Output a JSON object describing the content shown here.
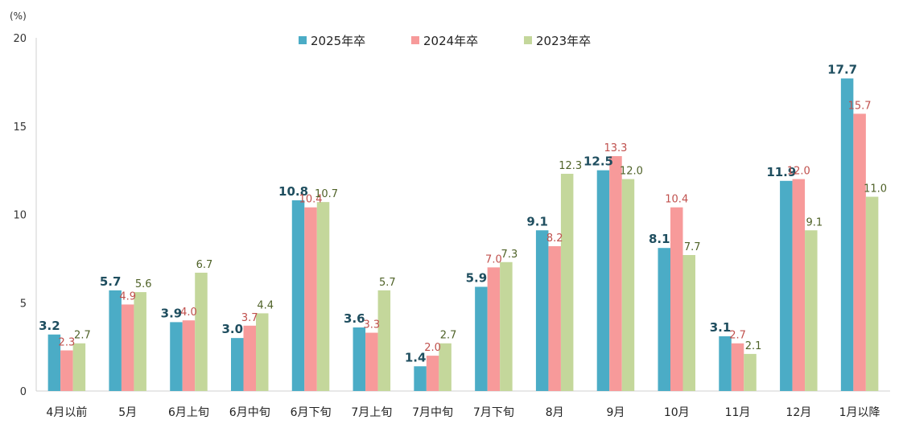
{
  "chart_data": {
    "type": "bar",
    "unit_label": "(%)",
    "categories": [
      "4月以前",
      "5月",
      "6月上旬",
      "6月中旬",
      "6月下旬",
      "7月上旬",
      "7月中旬",
      "7月下旬",
      "8月",
      "9月",
      "10月",
      "11月",
      "12月",
      "1月以降"
    ],
    "series": [
      {
        "name": "2025年卒",
        "color": "#4BACC6",
        "label_color": "#1F4E5F",
        "values": [
          3.2,
          5.7,
          3.9,
          3.0,
          10.8,
          3.6,
          1.4,
          5.9,
          9.1,
          12.5,
          8.1,
          3.1,
          11.9,
          17.7
        ]
      },
      {
        "name": "2024年卒",
        "color": "#F79A9A",
        "label_color": "#C0504D",
        "values": [
          2.3,
          4.9,
          4.0,
          3.7,
          10.4,
          3.3,
          2.0,
          7.0,
          8.2,
          13.3,
          10.4,
          2.7,
          12.0,
          15.7
        ]
      },
      {
        "name": "2023年卒",
        "color": "#C4D79B",
        "label_color": "#4F6228",
        "values": [
          2.7,
          5.6,
          6.7,
          4.4,
          10.7,
          5.7,
          2.7,
          7.3,
          12.3,
          12.0,
          7.7,
          2.1,
          9.1,
          11.0
        ]
      }
    ],
    "ylim": [
      0,
      20
    ],
    "yticks": [
      0,
      5,
      10,
      15,
      20
    ],
    "legend_position": "top-center",
    "grid": false
  }
}
